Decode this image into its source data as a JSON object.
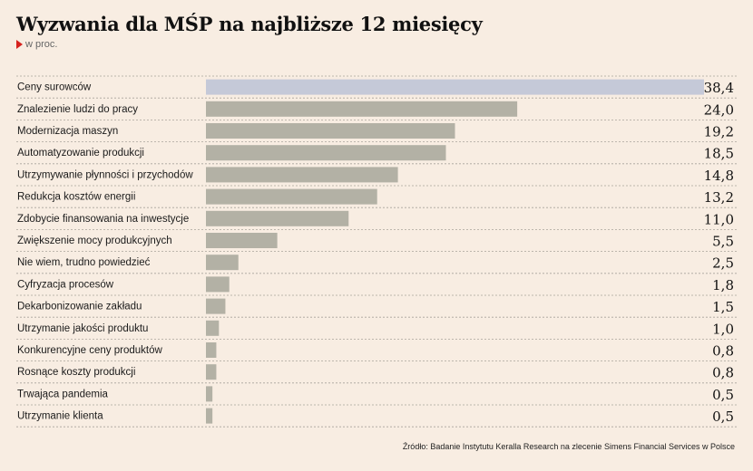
{
  "title": "Wyzwania dla MŚP na najbliższe 12 miesięcy",
  "subtitle": "w proc.",
  "source": "Źródło: Badanie Instytutu Keralla Research na zlecenie Simens Financial Services w Polsce",
  "colors": {
    "background": "#f8ede2",
    "bar": "#b3b1a5",
    "bar_highlight": "#c5c9d8",
    "accent": "#d6221e",
    "divider": "#a9a49b"
  },
  "chart_data": {
    "type": "bar",
    "orientation": "horizontal",
    "categories": [
      "Ceny surowców",
      "Znalezienie ludzi do pracy",
      "Modernizacja maszyn",
      "Automatyzowanie produkcji",
      "Utrzymywanie płynności i przychodów",
      "Redukcja kosztów energii",
      "Zdobycie finansowania na inwestycje",
      "Zwiększenie mocy produkcyjnych",
      "Nie wiem, trudno powiedzieć",
      "Cyfryzacja procesów",
      "Dekarbonizowanie zakładu",
      "Utrzymanie jakości produktu",
      "Konkurencyjne ceny produktów",
      "Rosnące koszty produkcji",
      "Trwająca pandemia",
      "Utrzymanie klienta"
    ],
    "values": [
      38.4,
      24.0,
      19.2,
      18.5,
      14.8,
      13.2,
      11.0,
      5.5,
      2.5,
      1.8,
      1.5,
      1.0,
      0.8,
      0.8,
      0.5,
      0.5
    ],
    "value_labels": [
      "38,4",
      "24,0",
      "19,2",
      "18,5",
      "14,8",
      "13,2",
      "11,0",
      "5,5",
      "2,5",
      "1,8",
      "1,5",
      "1,0",
      "0,8",
      "0,8",
      "0,5",
      "0,5"
    ],
    "highlight_index": 0,
    "xlim": [
      0,
      38.4
    ],
    "grid": false,
    "legend": "none"
  }
}
